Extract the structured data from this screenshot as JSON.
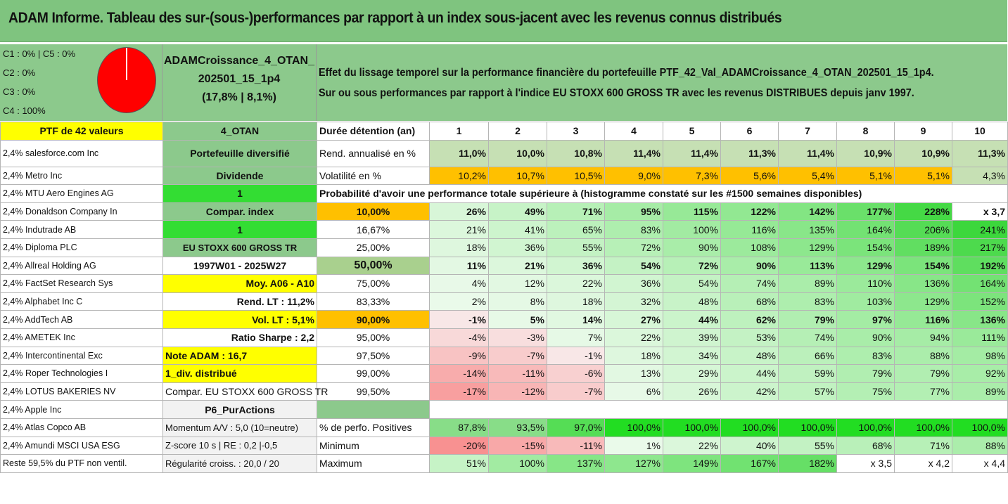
{
  "title": "ADAM Informe. Tableau des sur-(sous-)performances par rapport à un index sous-jacent avec les revenus connus distribués",
  "classes": [
    "C1 : 0% | C5 : 0%",
    "C2 : 0%",
    "C3 : 0%",
    "C4 : 100%"
  ],
  "portfolio": {
    "line1": "ADAMCroissance_4_OTAN_",
    "line2": "202501_15_1p4",
    "line3": "(17,8% | 8,1%)"
  },
  "description": {
    "line1": "Effet du lissage temporel sur la performance financière du portefeuille PTF_42_Val_ADAMCroissance_4_OTAN_202501_15_1p4.",
    "line2": "Sur ou sous performances par rapport à l'indice EU STOXX 600 GROSS TR avec les revenus DISTRIBUES depuis janv 1997."
  },
  "header": {
    "col1": "PTF de 42 valeurs",
    "col2": "4_OTAN",
    "col3": "Durée détention (an)",
    "years": [
      "1",
      "2",
      "3",
      "4",
      "5",
      "6",
      "7",
      "8",
      "9",
      "10"
    ]
  },
  "holdings": [
    "2,4% salesforce.com Inc",
    "2,4% Metro Inc",
    "2,4% MTU Aero Engines AG",
    "2,4% Donaldson Company In",
    "2,4% Indutrade AB",
    "2,4% Diploma PLC",
    "2,4% Allreal Holding AG",
    "2,4% FactSet Research Sys",
    "2,4% Alphabet Inc C",
    "2,4% AddTech AB",
    "2,4% AMETEK Inc",
    "2,4% Intercontinental Exc",
    "2,4% Roper Technologies I",
    "2,4% LOTUS BAKERIES NV",
    "2,4% Apple Inc",
    "2,4% Atlas Copco AB",
    "2,4% Amundi MSCI USA ESG",
    "Reste 59,5% du PTF non ventil."
  ],
  "col2": [
    "Portefeuille diversifié",
    "Dividende",
    "1",
    "Compar. index",
    "1",
    "EU STOXX 600 GROSS TR",
    "1997W01 - 2025W27",
    "Moy. A06 - A10",
    "Rend. LT : 11,2%",
    "Vol. LT : 5,1%",
    "Ratio Sharpe : 2,2",
    "Note ADAM : 16,7",
    "1_div. distribué",
    "Compar. EU STOXX 600 GROSS TR",
    "P6_PurActions",
    "Momentum A/V : 5,0 (10=neutre)",
    "Z-score 10 s | RE : 0,2 |-0,5",
    "Régularité croiss. : 20,0 / 20"
  ],
  "rend": {
    "label": "Rend. annualisé en %",
    "values": [
      "11,0%",
      "10,0%",
      "10,8%",
      "11,4%",
      "11,4%",
      "11,3%",
      "11,4%",
      "10,9%",
      "10,9%",
      "11,3%"
    ]
  },
  "vol": {
    "label": "Volatilité en %",
    "values": [
      "10,2%",
      "10,7%",
      "10,5%",
      "9,0%",
      "7,3%",
      "5,6%",
      "5,4%",
      "5,1%",
      "5,1%",
      "4,3%"
    ]
  },
  "prob_title": "Probabilité d'avoir une performance totale supérieure à (histogramme constaté sur les #1500 semaines disponibles)",
  "prob_rows": [
    {
      "p": "10,00%",
      "v": [
        "26%",
        "49%",
        "71%",
        "95%",
        "115%",
        "122%",
        "142%",
        "177%",
        "228%",
        "x 3,7"
      ]
    },
    {
      "p": "16,67%",
      "v": [
        "21%",
        "41%",
        "65%",
        "83%",
        "100%",
        "116%",
        "135%",
        "164%",
        "206%",
        "241%"
      ]
    },
    {
      "p": "25,00%",
      "v": [
        "18%",
        "36%",
        "55%",
        "72%",
        "90%",
        "108%",
        "129%",
        "154%",
        "189%",
        "217%"
      ]
    },
    {
      "p": "50,00%",
      "v": [
        "11%",
        "21%",
        "36%",
        "54%",
        "72%",
        "90%",
        "113%",
        "129%",
        "154%",
        "192%"
      ]
    },
    {
      "p": "75,00%",
      "v": [
        "4%",
        "12%",
        "22%",
        "36%",
        "54%",
        "74%",
        "89%",
        "110%",
        "136%",
        "164%"
      ]
    },
    {
      "p": "83,33%",
      "v": [
        "2%",
        "8%",
        "18%",
        "32%",
        "48%",
        "68%",
        "83%",
        "103%",
        "129%",
        "152%"
      ]
    },
    {
      "p": "90,00%",
      "v": [
        "-1%",
        "5%",
        "14%",
        "27%",
        "44%",
        "62%",
        "79%",
        "97%",
        "116%",
        "136%"
      ]
    },
    {
      "p": "95,00%",
      "v": [
        "-4%",
        "-3%",
        "7%",
        "22%",
        "39%",
        "53%",
        "74%",
        "90%",
        "94%",
        "111%"
      ]
    },
    {
      "p": "97,50%",
      "v": [
        "-9%",
        "-7%",
        "-1%",
        "18%",
        "34%",
        "48%",
        "66%",
        "83%",
        "88%",
        "98%"
      ]
    },
    {
      "p": "99,00%",
      "v": [
        "-14%",
        "-11%",
        "-6%",
        "13%",
        "29%",
        "44%",
        "59%",
        "79%",
        "79%",
        "92%"
      ]
    },
    {
      "p": "99,50%",
      "v": [
        "-17%",
        "-12%",
        "-7%",
        "6%",
        "26%",
        "42%",
        "57%",
        "75%",
        "77%",
        "89%"
      ]
    }
  ],
  "pos": {
    "label": "% de perfo. Positives",
    "values": [
      "87,8%",
      "93,5%",
      "97,0%",
      "100,0%",
      "100,0%",
      "100,0%",
      "100,0%",
      "100,0%",
      "100,0%",
      "100,0%"
    ]
  },
  "min": {
    "label": "Minimum",
    "values": [
      "-20%",
      "-15%",
      "-11%",
      "1%",
      "22%",
      "40%",
      "55%",
      "68%",
      "71%",
      "88%"
    ]
  },
  "max": {
    "label": "Maximum",
    "values": [
      "51%",
      "100%",
      "137%",
      "127%",
      "149%",
      "167%",
      "182%",
      "x 3,5",
      "x 4,2",
      "x 4,4"
    ]
  },
  "colors": {
    "header_green": "#7fc47f",
    "panel_green": "#8cc98c",
    "bright_green": "#33dd33",
    "yellow": "#ffff00",
    "orange": "#ffc000",
    "red_text": "#ee0000"
  }
}
